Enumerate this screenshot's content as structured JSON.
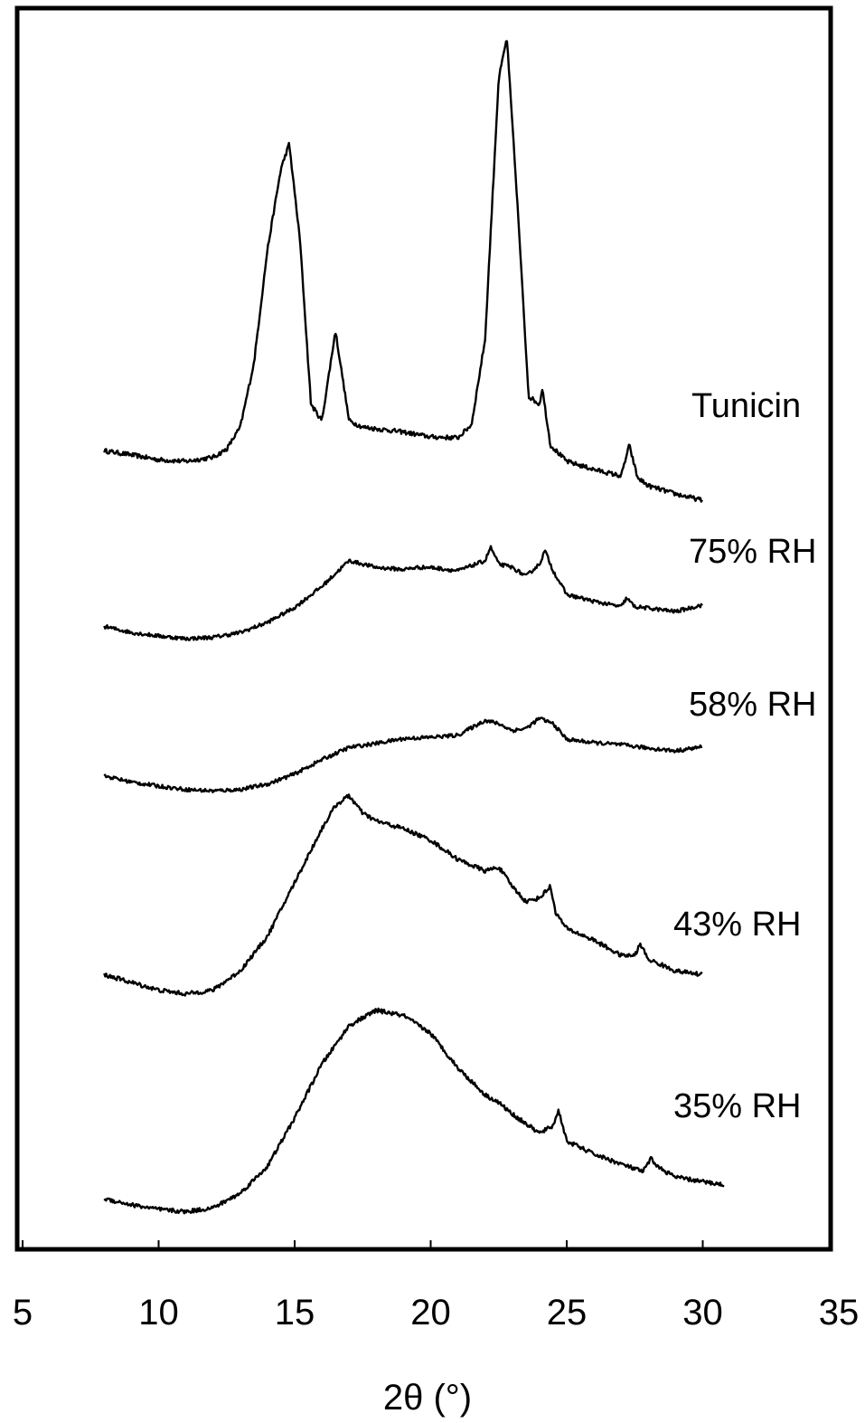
{
  "chart_data": {
    "type": "line",
    "xlabel": "2θ (°)",
    "ylabel": "",
    "xlim": [
      5,
      35
    ],
    "xticks": [
      5,
      10,
      15,
      20,
      25,
      30,
      35
    ],
    "yticks_shown": false,
    "grid": false,
    "series": [
      {
        "name": "Tunicin",
        "x": [
          8,
          9,
          10,
          11,
          12,
          12.5,
          13,
          13.5,
          14,
          14.5,
          14.8,
          15.2,
          15.6,
          16,
          16.5,
          17,
          17.5,
          18,
          19,
          20,
          21,
          21.5,
          22,
          22.5,
          22.8,
          23.2,
          23.6,
          24,
          24.1,
          24.4,
          25,
          26,
          27,
          27.3,
          27.6,
          28,
          29,
          30
        ],
        "y": [
          6.3,
          5.8,
          5.2,
          5.0,
          5.5,
          6.5,
          9.2,
          17.0,
          31.0,
          41.0,
          44.0,
          32.0,
          12.0,
          10.0,
          21.0,
          10.0,
          9.2,
          9.0,
          8.6,
          8.0,
          7.9,
          9.5,
          20.0,
          52.0,
          57.0,
          36.0,
          13.0,
          12.0,
          14.0,
          7.0,
          5.0,
          4.0,
          3.2,
          7.0,
          3.0,
          2.0,
          1.0,
          0.2
        ]
      },
      {
        "name": "75% RH",
        "x": [
          8,
          9,
          10,
          11,
          12,
          13,
          14,
          15,
          16,
          17,
          17.5,
          18,
          19,
          19.5,
          20,
          21,
          22,
          22.2,
          22.5,
          23,
          23.5,
          24,
          24.2,
          24.5,
          25,
          26,
          27,
          27.2,
          27.5,
          28,
          29,
          30
        ],
        "y": [
          1.8,
          0.9,
          0.4,
          0.0,
          0.2,
          0.9,
          2.4,
          4.6,
          7.7,
          11.5,
          11.0,
          10.5,
          10.2,
          10.5,
          10.5,
          10.0,
          11.5,
          13.5,
          11.0,
          10.5,
          9.2,
          11.0,
          13.0,
          10.0,
          6.5,
          5.5,
          4.7,
          6.0,
          4.7,
          4.5,
          4.0,
          5.0
        ]
      },
      {
        "name": "58% RH",
        "x": [
          8,
          9,
          10,
          11,
          12,
          13,
          14,
          15,
          16,
          17,
          18,
          19,
          20,
          21,
          22,
          22.5,
          23,
          23.5,
          24,
          24.5,
          25,
          26,
          27,
          28,
          29,
          30
        ],
        "y": [
          1.5,
          0.6,
          0.0,
          -0.5,
          -0.7,
          -0.5,
          0.3,
          1.8,
          3.9,
          5.7,
          6.3,
          7.0,
          7.2,
          7.5,
          9.7,
          9.2,
          8.2,
          8.5,
          10.0,
          9.2,
          6.9,
          6.4,
          6.1,
          5.6,
          5.2,
          5.8
        ]
      },
      {
        "name": "43% RH",
        "x": [
          8,
          9,
          10,
          11,
          12,
          13,
          14,
          15,
          16,
          16.5,
          17,
          17.5,
          18,
          19,
          20,
          21,
          22,
          22.5,
          23,
          23.5,
          24,
          24.4,
          24.6,
          25,
          26,
          27,
          27.5,
          27.7,
          28,
          29,
          30
        ],
        "y": [
          5.0,
          4.0,
          3.0,
          2.5,
          3.0,
          5.5,
          10.0,
          17.0,
          24.0,
          27.0,
          28.3,
          26.0,
          25.0,
          24.0,
          22.5,
          20.0,
          18.5,
          19.0,
          16.5,
          14.5,
          15.0,
          16.5,
          13.0,
          11.0,
          9.5,
          7.5,
          7.5,
          9.0,
          7.0,
          5.5,
          5.0
        ]
      },
      {
        "name": "35% RH",
        "x": [
          8,
          9,
          10,
          11,
          12,
          13,
          14,
          15,
          16,
          17,
          18,
          19,
          20,
          21,
          22,
          22.5,
          23,
          24,
          24.5,
          24.7,
          25,
          26,
          27,
          27.8,
          28.1,
          28.4,
          29,
          30,
          30.8
        ],
        "y": [
          -2.0,
          -2.8,
          -3.4,
          -3.7,
          -3.2,
          -1.3,
          2.2,
          8.5,
          15.5,
          20.5,
          22.5,
          21.8,
          19.5,
          15.0,
          11.5,
          10.5,
          9.0,
          6.5,
          7.5,
          9.5,
          5.5,
          3.8,
          2.5,
          1.5,
          3.2,
          2.0,
          0.8,
          0.2,
          -0.2
        ]
      }
    ]
  }
}
